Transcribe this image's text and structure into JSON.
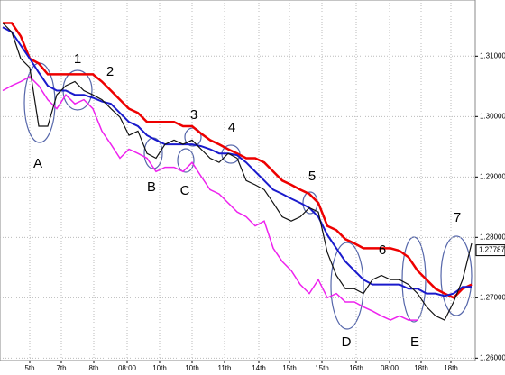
{
  "chart_data": {
    "type": "line",
    "x": [
      0,
      1,
      2,
      3,
      4,
      5,
      6,
      7,
      8,
      9,
      10,
      11,
      12,
      13,
      14,
      15,
      16,
      17,
      18,
      19,
      20,
      21,
      22,
      23,
      24,
      25,
      26,
      27,
      28,
      29,
      30,
      31,
      32,
      33,
      34,
      35,
      36,
      37,
      38,
      39,
      40,
      41,
      42,
      43,
      44,
      45,
      46,
      47,
      48,
      49,
      50,
      51,
      52
    ],
    "xlim": [
      -0.3,
      52.4
    ],
    "xticks": [
      {
        "value": 3,
        "label": "5th"
      },
      {
        "value": 6.5,
        "label": "7th"
      },
      {
        "value": 10.1,
        "label": "8th"
      },
      {
        "value": 13.8,
        "label": "08:00"
      },
      {
        "value": 17.4,
        "label": "10th"
      },
      {
        "value": 21,
        "label": "10th"
      },
      {
        "value": 24.6,
        "label": "11th"
      },
      {
        "value": 28.4,
        "label": "14th"
      },
      {
        "value": 31.8,
        "label": "15th"
      },
      {
        "value": 35.4,
        "label": "15th"
      },
      {
        "value": 39.2,
        "label": "16th"
      },
      {
        "value": 42.9,
        "label": "08:00"
      },
      {
        "value": 46.4,
        "label": "18th"
      },
      {
        "value": 49.7,
        "label": "18th"
      }
    ],
    "ylim": [
      1.2596,
      1.3193
    ],
    "yticks": [
      {
        "value": 1.26,
        "label": "1.26000"
      },
      {
        "value": 1.27,
        "label": "1.27000"
      },
      {
        "value": 1.28,
        "label": "1.28000"
      },
      {
        "value": 1.29,
        "label": "1.29000"
      },
      {
        "value": 1.3,
        "label": "1.30000"
      },
      {
        "value": 1.31,
        "label": "1.31000"
      }
    ],
    "grid": true,
    "last_price": 1.27787,
    "series": [
      {
        "color": "#ee0000",
        "width": 2.5,
        "values": [
          1.3155,
          1.3155,
          1.3133,
          1.3096,
          1.3088,
          1.307,
          1.307,
          1.307,
          1.307,
          1.307,
          1.307,
          1.3058,
          1.3043,
          1.3028,
          1.3013,
          1.3006,
          1.2991,
          1.2991,
          1.2991,
          1.2991,
          1.2984,
          1.2984,
          1.2972,
          1.2961,
          1.2954,
          1.2946,
          1.2939,
          1.2931,
          1.2931,
          1.2924,
          1.2909,
          1.2894,
          1.2887,
          1.2879,
          1.2872,
          1.2857,
          1.2819,
          1.2812,
          1.2797,
          1.279,
          1.2782,
          1.2782,
          1.2782,
          1.2782,
          1.2778,
          1.2767,
          1.2745,
          1.273,
          1.2715,
          1.2707,
          1.27,
          1.2715,
          1.2722
        ]
      },
      {
        "color": "#1a1acc",
        "width": 2,
        "values": [
          1.3148,
          1.314,
          1.3118,
          1.3096,
          1.3073,
          1.3051,
          1.3043,
          1.3043,
          1.3036,
          1.3036,
          1.3031,
          1.3025,
          1.3021,
          1.3006,
          1.2991,
          1.2984,
          1.2969,
          1.2961,
          1.2954,
          1.2954,
          1.2954,
          1.2954,
          1.2951,
          1.2946,
          1.2939,
          1.2939,
          1.2936,
          1.2924,
          1.2909,
          1.2894,
          1.2879,
          1.2872,
          1.2864,
          1.2857,
          1.2849,
          1.2834,
          1.2804,
          1.2782,
          1.276,
          1.2745,
          1.273,
          1.2722,
          1.2722,
          1.2722,
          1.2722,
          1.2715,
          1.2715,
          1.2707,
          1.2707,
          1.2703,
          1.2707,
          1.2718,
          1.2718
        ]
      },
      {
        "color": "#ee22ee",
        "width": 1.5,
        "values": [
          1.3043,
          1.3051,
          1.3058,
          1.3066,
          1.3051,
          1.3028,
          1.3013,
          1.3036,
          1.3021,
          1.3028,
          1.3013,
          1.2976,
          1.2954,
          1.2931,
          1.2946,
          1.2939,
          1.2931,
          1.2909,
          1.2916,
          1.2916,
          1.2909,
          1.2924,
          1.2901,
          1.2879,
          1.2872,
          1.2857,
          1.2842,
          1.2834,
          1.2819,
          1.2827,
          1.2782,
          1.276,
          1.2745,
          1.2722,
          1.2707,
          1.273,
          1.27,
          1.2707,
          1.2693,
          1.2693,
          1.2685,
          1.2678,
          1.267,
          1.2663,
          1.267,
          1.2663,
          1.2663,
          null,
          null,
          null,
          null,
          null,
          null
        ]
      },
      {
        "color": "#111111",
        "width": 1.2,
        "values": [
          1.3155,
          1.314,
          1.3096,
          1.3081,
          1.2984,
          1.2984,
          1.3036,
          1.3051,
          1.3058,
          1.3043,
          1.3036,
          1.3028,
          1.3013,
          1.2999,
          1.2969,
          1.2976,
          1.2939,
          1.2931,
          1.2954,
          1.2961,
          1.2954,
          1.2961,
          1.2946,
          1.2931,
          1.2924,
          1.2939,
          1.2931,
          1.2894,
          1.2887,
          1.2879,
          1.2857,
          1.2834,
          1.2827,
          1.2834,
          1.2849,
          1.2842,
          1.2775,
          1.2737,
          1.2715,
          1.2715,
          1.2707,
          1.273,
          1.2737,
          1.273,
          1.273,
          1.2722,
          1.2707,
          1.2685,
          1.267,
          1.2663,
          1.2693,
          1.273,
          1.279
        ]
      }
    ],
    "annotations": [
      "A",
      "1",
      "2",
      "B",
      "C",
      "3",
      "4",
      "5",
      "D",
      "6",
      "E",
      "7"
    ]
  }
}
